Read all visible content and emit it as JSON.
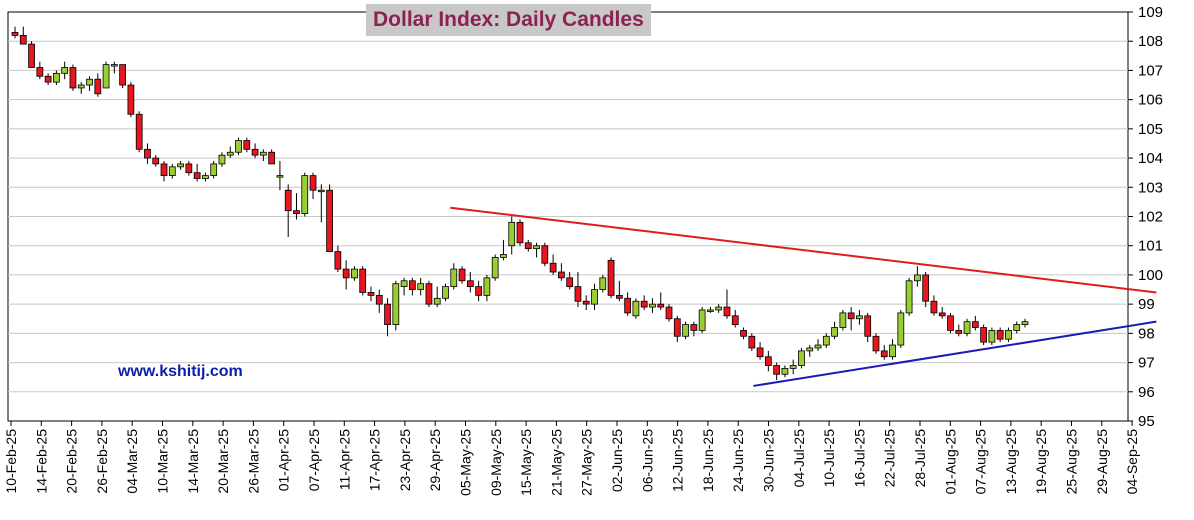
{
  "chart_data": {
    "type": "candlestick",
    "title": "Dollar Index: Daily Candles",
    "watermark": "www.kshitij.com",
    "ylim": [
      95,
      109
    ],
    "yticks": [
      95,
      96,
      97,
      98,
      99,
      100,
      101,
      102,
      103,
      104,
      105,
      106,
      107,
      108,
      109
    ],
    "xtick_labels": [
      "10-Feb-25",
      "14-Feb-25",
      "20-Feb-25",
      "26-Feb-25",
      "04-Mar-25",
      "10-Mar-25",
      "14-Mar-25",
      "20-Mar-25",
      "26-Mar-25",
      "01-Apr-25",
      "07-Apr-25",
      "11-Apr-25",
      "17-Apr-25",
      "23-Apr-25",
      "29-Apr-25",
      "05-May-25",
      "09-May-25",
      "15-May-25",
      "21-May-25",
      "27-May-25",
      "02-Jun-25",
      "06-Jun-25",
      "12-Jun-25",
      "18-Jun-25",
      "24-Jun-25",
      "30-Jun-25",
      "04-Jul-25",
      "10-Jul-25",
      "16-Jul-25",
      "22-Jul-25",
      "28-Jul-25",
      "01-Aug-25",
      "07-Aug-25",
      "13-Aug-25",
      "19-Aug-25",
      "25-Aug-25",
      "29-Aug-25",
      "04-Sep-25"
    ],
    "colors": {
      "up": "#9acd32",
      "down": "#e8141e",
      "resistance": "#e01b1b",
      "support": "#1a1ab8",
      "grid": "#c8c8c8"
    },
    "candles": [
      [
        108.3,
        108.5,
        108.1,
        108.2
      ],
      [
        108.2,
        108.5,
        107.9,
        107.9
      ],
      [
        107.9,
        108.0,
        107.1,
        107.1
      ],
      [
        107.1,
        107.3,
        106.7,
        106.8
      ],
      [
        106.8,
        106.9,
        106.5,
        106.6
      ],
      [
        106.6,
        107.0,
        106.5,
        106.9
      ],
      [
        106.9,
        107.3,
        106.7,
        107.1
      ],
      [
        107.1,
        107.2,
        106.3,
        106.4
      ],
      [
        106.4,
        106.6,
        106.2,
        106.5
      ],
      [
        106.5,
        106.8,
        106.3,
        106.7
      ],
      [
        106.7,
        106.9,
        106.1,
        106.2
      ],
      [
        106.4,
        107.3,
        106.4,
        107.2
      ],
      [
        107.2,
        107.3,
        106.9,
        107.2
      ],
      [
        107.2,
        107.2,
        106.4,
        106.5
      ],
      [
        106.5,
        106.6,
        105.4,
        105.5
      ],
      [
        105.5,
        105.6,
        104.2,
        104.3
      ],
      [
        104.3,
        104.5,
        103.8,
        104.0
      ],
      [
        104.0,
        104.1,
        103.7,
        103.8
      ],
      [
        103.8,
        103.9,
        103.2,
        103.4
      ],
      [
        103.4,
        103.8,
        103.3,
        103.7
      ],
      [
        103.7,
        103.9,
        103.6,
        103.8
      ],
      [
        103.8,
        103.9,
        103.4,
        103.5
      ],
      [
        103.5,
        103.8,
        103.2,
        103.3
      ],
      [
        103.3,
        103.5,
        103.2,
        103.4
      ],
      [
        103.4,
        103.9,
        103.3,
        103.8
      ],
      [
        103.8,
        104.2,
        103.7,
        104.1
      ],
      [
        104.1,
        104.4,
        104.0,
        104.2
      ],
      [
        104.2,
        104.7,
        104.1,
        104.6
      ],
      [
        104.6,
        104.7,
        104.2,
        104.3
      ],
      [
        104.3,
        104.5,
        104.0,
        104.1
      ],
      [
        104.1,
        104.3,
        103.9,
        104.2
      ],
      [
        104.2,
        104.3,
        103.8,
        103.8
      ],
      [
        103.4,
        103.9,
        102.9,
        103.4
      ],
      [
        102.9,
        103.1,
        101.3,
        102.2
      ],
      [
        102.2,
        102.8,
        101.9,
        102.1
      ],
      [
        102.1,
        103.5,
        102.0,
        103.4
      ],
      [
        103.4,
        103.5,
        102.6,
        102.9
      ],
      [
        102.9,
        103.1,
        101.8,
        102.9
      ],
      [
        102.9,
        103.1,
        100.8,
        100.8
      ],
      [
        100.8,
        101.0,
        100.1,
        100.2
      ],
      [
        100.2,
        100.5,
        99.5,
        99.9
      ],
      [
        99.9,
        100.3,
        99.8,
        100.2
      ],
      [
        100.2,
        100.3,
        99.3,
        99.4
      ],
      [
        99.4,
        99.6,
        99.1,
        99.3
      ],
      [
        99.3,
        99.5,
        98.7,
        99.0
      ],
      [
        99.0,
        99.2,
        97.9,
        98.3
      ],
      [
        98.3,
        99.8,
        98.1,
        99.7
      ],
      [
        99.6,
        99.9,
        99.3,
        99.8
      ],
      [
        99.8,
        99.9,
        99.3,
        99.5
      ],
      [
        99.5,
        99.9,
        99.3,
        99.7
      ],
      [
        99.7,
        99.8,
        98.9,
        99.0
      ],
      [
        99.0,
        99.6,
        98.9,
        99.2
      ],
      [
        99.2,
        99.7,
        99.1,
        99.6
      ],
      [
        99.6,
        100.4,
        99.5,
        100.2
      ],
      [
        100.2,
        100.3,
        99.7,
        99.8
      ],
      [
        99.8,
        100.1,
        99.4,
        99.6
      ],
      [
        99.6,
        99.8,
        99.1,
        99.3
      ],
      [
        99.3,
        100.0,
        99.1,
        99.9
      ],
      [
        99.9,
        100.7,
        99.8,
        100.6
      ],
      [
        100.6,
        101.2,
        100.5,
        100.7
      ],
      [
        101.0,
        102.0,
        100.7,
        101.8
      ],
      [
        101.8,
        101.9,
        101.0,
        101.1
      ],
      [
        101.1,
        101.2,
        100.8,
        100.9
      ],
      [
        100.9,
        101.1,
        100.6,
        101.0
      ],
      [
        101.0,
        101.1,
        100.3,
        100.4
      ],
      [
        100.4,
        100.7,
        100.0,
        100.1
      ],
      [
        100.1,
        100.4,
        99.8,
        99.9
      ],
      [
        99.9,
        100.1,
        99.5,
        99.6
      ],
      [
        99.6,
        100.1,
        98.9,
        99.1
      ],
      [
        99.1,
        99.3,
        98.8,
        99.0
      ],
      [
        99.0,
        99.7,
        98.8,
        99.5
      ],
      [
        99.5,
        100.0,
        99.4,
        99.9
      ],
      [
        100.5,
        100.6,
        99.2,
        99.3
      ],
      [
        99.3,
        99.8,
        99.1,
        99.2
      ],
      [
        99.2,
        99.4,
        98.6,
        98.7
      ],
      [
        98.6,
        99.2,
        98.5,
        99.1
      ],
      [
        99.1,
        99.3,
        98.8,
        98.9
      ],
      [
        98.9,
        99.2,
        98.7,
        99.0
      ],
      [
        99.0,
        99.4,
        98.8,
        98.9
      ],
      [
        98.9,
        99.0,
        98.4,
        98.5
      ],
      [
        98.5,
        98.6,
        97.7,
        97.9
      ],
      [
        97.9,
        98.4,
        97.8,
        98.3
      ],
      [
        98.3,
        98.4,
        97.9,
        98.1
      ],
      [
        98.1,
        98.9,
        98.0,
        98.8
      ],
      [
        98.8,
        98.9,
        98.7,
        98.8
      ],
      [
        98.8,
        99.0,
        98.7,
        98.9
      ],
      [
        98.9,
        99.5,
        98.5,
        98.6
      ],
      [
        98.6,
        98.8,
        98.2,
        98.3
      ],
      [
        98.1,
        98.2,
        97.8,
        97.9
      ],
      [
        97.9,
        98.0,
        97.4,
        97.5
      ],
      [
        97.5,
        97.7,
        97.1,
        97.2
      ],
      [
        97.2,
        97.4,
        96.7,
        96.9
      ],
      [
        96.9,
        97.0,
        96.4,
        96.6
      ],
      [
        96.6,
        96.9,
        96.5,
        96.8
      ],
      [
        96.8,
        97.1,
        96.6,
        96.9
      ],
      [
        96.9,
        97.5,
        96.8,
        97.4
      ],
      [
        97.4,
        97.6,
        97.2,
        97.5
      ],
      [
        97.5,
        97.8,
        97.4,
        97.6
      ],
      [
        97.6,
        98.0,
        97.5,
        97.9
      ],
      [
        97.9,
        98.4,
        97.8,
        98.2
      ],
      [
        98.2,
        98.8,
        98.1,
        98.7
      ],
      [
        98.7,
        98.9,
        98.1,
        98.5
      ],
      [
        98.5,
        98.8,
        98.3,
        98.6
      ],
      [
        98.6,
        98.7,
        97.7,
        97.9
      ],
      [
        97.9,
        98.0,
        97.3,
        97.4
      ],
      [
        97.4,
        97.6,
        97.1,
        97.2
      ],
      [
        97.2,
        97.8,
        97.1,
        97.6
      ],
      [
        97.6,
        98.8,
        97.5,
        98.7
      ],
      [
        98.7,
        99.9,
        98.6,
        99.8
      ],
      [
        99.8,
        100.3,
        99.6,
        100.0
      ],
      [
        100.0,
        100.1,
        98.9,
        99.1
      ],
      [
        99.1,
        99.3,
        98.6,
        98.7
      ],
      [
        98.7,
        98.9,
        98.5,
        98.6
      ],
      [
        98.6,
        98.7,
        98.0,
        98.1
      ],
      [
        98.1,
        98.3,
        97.9,
        98.0
      ],
      [
        98.0,
        98.5,
        97.9,
        98.4
      ],
      [
        98.4,
        98.6,
        98.1,
        98.2
      ],
      [
        98.2,
        98.3,
        97.6,
        97.7
      ],
      [
        97.7,
        98.2,
        97.6,
        98.1
      ],
      [
        98.1,
        98.2,
        97.7,
        97.8
      ],
      [
        97.8,
        98.2,
        97.7,
        98.1
      ],
      [
        98.1,
        98.4,
        98.0,
        98.3
      ],
      [
        98.3,
        98.5,
        98.2,
        98.4
      ]
    ],
    "trendlines": [
      {
        "name": "resistance",
        "from": [
          14.5,
          102.3
        ],
        "to": [
          37.8,
          99.4
        ]
      },
      {
        "name": "support",
        "from": [
          24.5,
          96.2
        ],
        "to": [
          37.8,
          98.4
        ]
      }
    ]
  }
}
